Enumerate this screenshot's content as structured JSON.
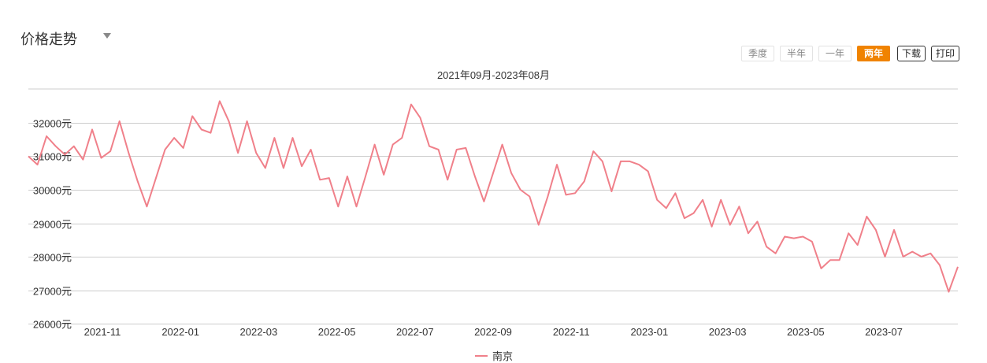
{
  "header": {
    "title": "价格走势"
  },
  "range_buttons": [
    {
      "label": "季度",
      "active": false
    },
    {
      "label": "半年",
      "active": false
    },
    {
      "label": "一年",
      "active": false
    },
    {
      "label": "两年",
      "active": true
    }
  ],
  "actions": {
    "download": "下载",
    "print": "打印"
  },
  "colors": {
    "series": "#f0808a",
    "accent": "#f08300",
    "grid": "#cccccc"
  },
  "chart_data": {
    "type": "line",
    "title": "2021年09月-2023年08月",
    "ylim": [
      26000,
      33000
    ],
    "y_ticks": [
      "26000元",
      "27000元",
      "28000元",
      "29000元",
      "30000元",
      "31000元",
      "32000元"
    ],
    "x_ticks": [
      "2021-11",
      "2022-01",
      "2022-03",
      "2022-05",
      "2022-07",
      "2022-09",
      "2022-11",
      "2023-01",
      "2023-03",
      "2023-05",
      "2023-07"
    ],
    "grid": true,
    "legend_position": "bottom",
    "series": [
      {
        "name": "南京",
        "values": [
          31000,
          30750,
          31600,
          31300,
          31050,
          31300,
          30900,
          31800,
          30950,
          31150,
          32050,
          31100,
          30250,
          29500,
          30350,
          31200,
          31550,
          31250,
          32200,
          31800,
          31700,
          32650,
          32050,
          31100,
          32050,
          31100,
          30650,
          31550,
          30650,
          31550,
          30700,
          31200,
          30300,
          30350,
          29500,
          30400,
          29500,
          30400,
          31350,
          30450,
          31350,
          31550,
          32550,
          32150,
          31300,
          31200,
          30300,
          31200,
          31250,
          30400,
          29650,
          30500,
          31350,
          30500,
          30000,
          29800,
          28950,
          29800,
          30750,
          29850,
          29900,
          30250,
          31150,
          30850,
          29950,
          30850,
          30850,
          30750,
          30550,
          29700,
          29450,
          29900,
          29150,
          29300,
          29700,
          28900,
          29700,
          28950,
          29500,
          28700,
          29050,
          28300,
          28100,
          28600,
          28550,
          28600,
          28450,
          27650,
          27900,
          27900,
          28700,
          28350,
          29200,
          28800,
          28000,
          28800,
          28000,
          28150,
          28000,
          28100,
          27750,
          26950,
          27700
        ]
      }
    ]
  }
}
